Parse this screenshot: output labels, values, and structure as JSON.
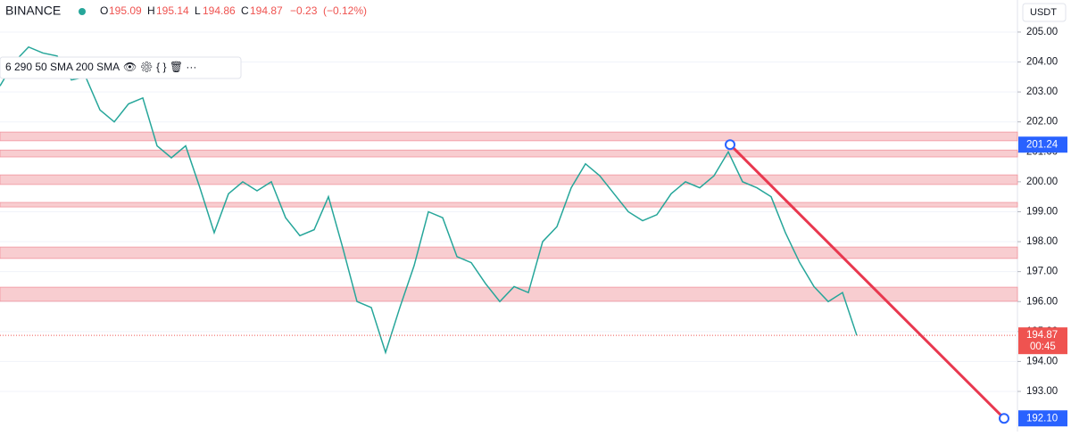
{
  "chart_data": {
    "type": "line",
    "symbol": "BINANCE",
    "quote": {
      "open_label": "O",
      "open": 195.09,
      "high_label": "H",
      "high": 195.14,
      "low_label": "L",
      "low": 194.86,
      "close_label": "C",
      "close": 194.87,
      "change": "−0.23",
      "change_pct": "(−0.12%)"
    },
    "indicators": "6 290 50 SMA 200 SMA",
    "currency": "USDT",
    "values": [
      203.2,
      204,
      204.5,
      204.3,
      204.2,
      203.4,
      203.5,
      202.4,
      202.0,
      202.6,
      202.8,
      201.2,
      200.8,
      201.2,
      199.8,
      198.3,
      199.6,
      200.0,
      199.7,
      200.0,
      198.8,
      198.2,
      198.4,
      199.5,
      197.8,
      196.0,
      195.8,
      194.3,
      195.8,
      197.2,
      199.0,
      198.8,
      197.5,
      197.3,
      196.6,
      196.0,
      196.5,
      196.3,
      198.0,
      198.5,
      199.8,
      200.6,
      200.2,
      199.6,
      199.0,
      198.7,
      198.9,
      199.6,
      200.0,
      199.8,
      200.2,
      201.0,
      200.0,
      199.8,
      199.5,
      198.3,
      197.3,
      196.5,
      196.0,
      196.3,
      194.87
    ],
    "color": "#26a69a",
    "ylim": [
      191.66,
      206.07
    ],
    "yticks": [
      {
        "value": 193,
        "label": "193.00"
      },
      {
        "value": 194,
        "label": "194.00"
      },
      {
        "value": 195,
        "label": "195.00"
      },
      {
        "value": 196,
        "label": "196.00"
      },
      {
        "value": 197,
        "label": "197.00"
      },
      {
        "value": 198,
        "label": "198.00"
      },
      {
        "value": 199,
        "label": "199.00"
      },
      {
        "value": 200,
        "label": "200.00"
      },
      {
        "value": 201,
        "label": "201.00"
      },
      {
        "value": 202,
        "label": "202.00"
      },
      {
        "value": 203,
        "label": "203.00"
      },
      {
        "value": 204,
        "label": "204.00"
      },
      {
        "value": 205,
        "label": "205.00"
      }
    ],
    "zones": [
      [
        201.37,
        201.66
      ],
      [
        200.83,
        201.06
      ],
      [
        199.91,
        200.23
      ],
      [
        199.16,
        199.31
      ],
      [
        197.44,
        197.82
      ],
      [
        196.01,
        196.48
      ]
    ],
    "zone_color": "#f8c8cc",
    "trendline": {
      "from": 201.24,
      "to": {
        "value": 192.1,
        "label": "192.10"
      },
      "color": "#e8384f"
    },
    "current_price": 194.87,
    "countdown": "00:45"
  }
}
